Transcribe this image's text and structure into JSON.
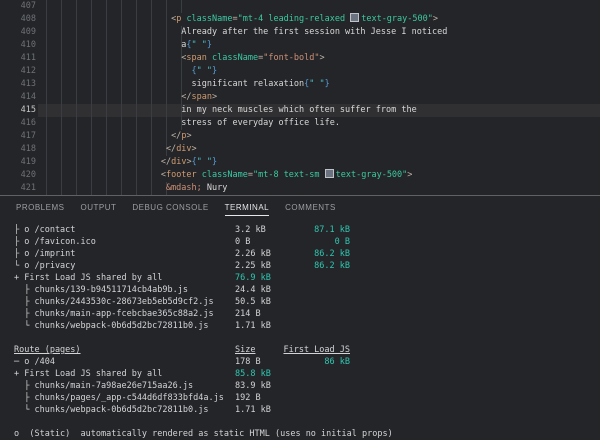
{
  "palette": {
    "bg": "#242528",
    "divider": "#616161",
    "guide": "#3a3d42",
    "lineNum": "#6d7177",
    "lineNumActive": "#c8c8c8",
    "activeLineBg": "rgba(255,255,255,0.055)",
    "tabText": "#9b9ea3",
    "tabActive": "#e6e7e9",
    "teal": "#2fc7b2",
    "termText": "#d2d4d6",
    "punct": "#c2b5a9",
    "tag": "#cf9b72",
    "attr": "#3cc9a6",
    "str": "#ce9178",
    "strt": "#3cc9a0",
    "brace": "#569cd6",
    "qstr": "#4ec1c9",
    "ctext": "#d8d8d8",
    "ent": "#ce9178",
    "swatchFill": "#6b7280",
    "swatchBorder": "#bfc3c7"
  },
  "editor": {
    "lines": [
      {
        "num": "407",
        "indent": 0,
        "guides": 10,
        "active": false,
        "tokens": []
      },
      {
        "num": "408",
        "indent": 26,
        "guides": 9,
        "active": false,
        "tokens": [
          {
            "t": "<",
            "c": "punct"
          },
          {
            "t": "p",
            "c": "tag"
          },
          {
            "t": " ",
            "c": "text"
          },
          {
            "t": "className",
            "c": "attr"
          },
          {
            "t": "=",
            "c": "punct"
          },
          {
            "t": "\"mt-4 leading-relaxed ",
            "c": "strt"
          },
          {
            "t": "",
            "c": "swatch"
          },
          {
            "t": "text-gray-500\"",
            "c": "strt"
          },
          {
            "t": ">",
            "c": "punct"
          }
        ]
      },
      {
        "num": "409",
        "indent": 28,
        "guides": 10,
        "active": false,
        "tokens": [
          {
            "t": "Already after the first session with Jesse I noticed",
            "c": "text"
          }
        ]
      },
      {
        "num": "410",
        "indent": 28,
        "guides": 10,
        "active": false,
        "tokens": [
          {
            "t": "a",
            "c": "text"
          },
          {
            "t": "{",
            "c": "brace"
          },
          {
            "t": "\" \"",
            "c": "qstr"
          },
          {
            "t": "}",
            "c": "brace"
          }
        ]
      },
      {
        "num": "411",
        "indent": 28,
        "guides": 10,
        "active": false,
        "tokens": [
          {
            "t": "<",
            "c": "punct"
          },
          {
            "t": "span",
            "c": "tag"
          },
          {
            "t": " ",
            "c": "text"
          },
          {
            "t": "className",
            "c": "attr"
          },
          {
            "t": "=",
            "c": "punct"
          },
          {
            "t": "\"font-bold\"",
            "c": "str"
          },
          {
            "t": ">",
            "c": "punct"
          }
        ]
      },
      {
        "num": "412",
        "indent": 30,
        "guides": 10,
        "active": false,
        "tokens": [
          {
            "t": "{",
            "c": "brace"
          },
          {
            "t": "\" \"",
            "c": "qstr"
          },
          {
            "t": "}",
            "c": "brace"
          }
        ]
      },
      {
        "num": "413",
        "indent": 30,
        "guides": 10,
        "active": false,
        "tokens": [
          {
            "t": "significant relaxation",
            "c": "text"
          },
          {
            "t": "{",
            "c": "brace"
          },
          {
            "t": "\" \"",
            "c": "qstr"
          },
          {
            "t": "}",
            "c": "brace"
          }
        ]
      },
      {
        "num": "414",
        "indent": 28,
        "guides": 10,
        "active": false,
        "tokens": [
          {
            "t": "</",
            "c": "punct"
          },
          {
            "t": "span",
            "c": "tag"
          },
          {
            "t": ">",
            "c": "punct"
          }
        ]
      },
      {
        "num": "415",
        "indent": 28,
        "guides": 10,
        "active": true,
        "tokens": [
          {
            "t": "in my neck muscles which often suffer from the",
            "c": "text"
          }
        ]
      },
      {
        "num": "416",
        "indent": 28,
        "guides": 10,
        "active": false,
        "tokens": [
          {
            "t": "stress of everyday office life.",
            "c": "text"
          }
        ]
      },
      {
        "num": "417",
        "indent": 26,
        "guides": 9,
        "active": false,
        "tokens": [
          {
            "t": "</",
            "c": "punct"
          },
          {
            "t": "p",
            "c": "tag"
          },
          {
            "t": ">",
            "c": "punct"
          }
        ]
      },
      {
        "num": "418",
        "indent": 25,
        "guides": 9,
        "active": false,
        "tokens": [
          {
            "t": "</",
            "c": "punct"
          },
          {
            "t": "div",
            "c": "tag"
          },
          {
            "t": ">",
            "c": "punct"
          }
        ]
      },
      {
        "num": "419",
        "indent": 24,
        "guides": 8,
        "active": false,
        "tokens": [
          {
            "t": "</",
            "c": "punct"
          },
          {
            "t": "div",
            "c": "tag"
          },
          {
            "t": ">",
            "c": "punct"
          },
          {
            "t": "{",
            "c": "brace"
          },
          {
            "t": "\" \"",
            "c": "qstr"
          },
          {
            "t": "}",
            "c": "brace"
          }
        ]
      },
      {
        "num": "420",
        "indent": 24,
        "guides": 8,
        "active": false,
        "tokens": [
          {
            "t": "<",
            "c": "punct"
          },
          {
            "t": "footer",
            "c": "tag"
          },
          {
            "t": " ",
            "c": "text"
          },
          {
            "t": "className",
            "c": "attr"
          },
          {
            "t": "=",
            "c": "punct"
          },
          {
            "t": "\"mt-8 text-sm ",
            "c": "strt"
          },
          {
            "t": "",
            "c": "swatch"
          },
          {
            "t": "text-gray-500\"",
            "c": "strt"
          },
          {
            "t": ">",
            "c": "punct"
          }
        ]
      },
      {
        "num": "421",
        "indent": 25,
        "guides": 9,
        "active": false,
        "tokens": [
          {
            "t": "&mdash;",
            "c": "ent"
          },
          {
            "t": " Nury",
            "c": "text"
          }
        ]
      }
    ]
  },
  "panel": {
    "tabs": [
      {
        "label": "PROBLEMS",
        "active": false
      },
      {
        "label": "OUTPUT",
        "active": false
      },
      {
        "label": "DEBUG CONSOLE",
        "active": false
      },
      {
        "label": "TERMINAL",
        "active": true
      },
      {
        "label": "COMMENTS",
        "active": false
      }
    ]
  },
  "terminal": {
    "rows": [
      {
        "cells": [
          "├ o /contact",
          "3.2 kB",
          "87.1 kB"
        ]
      },
      {
        "cells": [
          "├ o /favicon.ico",
          "0 B",
          "0 B"
        ]
      },
      {
        "cells": [
          "├ o /imprint",
          "2.26 kB",
          "86.2 kB"
        ]
      },
      {
        "cells": [
          "└ o /privacy",
          "2.25 kB",
          "86.2 kB"
        ]
      },
      {
        "cells": [
          "+ First Load JS shared by all",
          "76.9 kB",
          ""
        ],
        "sizeTeal": true
      },
      {
        "cells": [
          "  ├ chunks/139-b94511714cb4ab9b.js",
          "24.4 kB",
          ""
        ]
      },
      {
        "cells": [
          "  ├ chunks/2443530c-28673eb5eb5d9cf2.js",
          "50.5 kB",
          ""
        ]
      },
      {
        "cells": [
          "  ├ chunks/main-app-fcebcbae365c88a2.js",
          "214 B",
          ""
        ]
      },
      {
        "cells": [
          "  └ chunks/webpack-0b6d5d2bc72811b0.js",
          "1.71 kB",
          ""
        ]
      },
      {
        "blank": true
      },
      {
        "cells": [
          "Route (pages)",
          "Size",
          "First Load JS"
        ],
        "header": true
      },
      {
        "cells": [
          "─ o /404",
          "178 B",
          "86 kB"
        ]
      },
      {
        "cells": [
          "+ First Load JS shared by all",
          "85.8 kB",
          ""
        ],
        "sizeTeal": true
      },
      {
        "cells": [
          "  ├ chunks/main-7a98ae26e715aa26.js",
          "83.9 kB",
          ""
        ]
      },
      {
        "cells": [
          "  ├ chunks/pages/_app-c544d6df833bfd4a.js",
          "192 B",
          ""
        ]
      },
      {
        "cells": [
          "  └ chunks/webpack-0b6d5d2bc72811b0.js",
          "1.71 kB",
          ""
        ]
      },
      {
        "blank": true
      },
      {
        "full": "o  (Static)  automatically rendered as static HTML (uses no initial props)"
      }
    ]
  }
}
